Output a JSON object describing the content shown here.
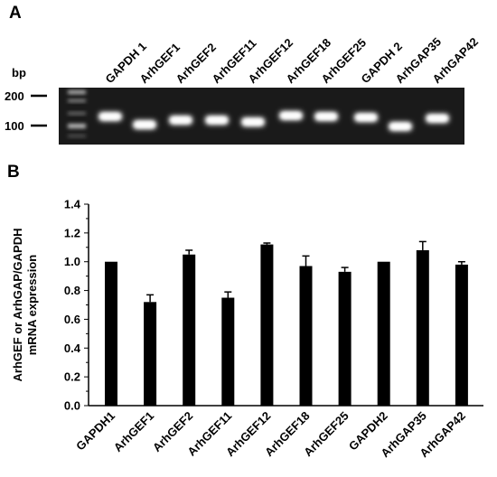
{
  "panel_a": {
    "letter": "A",
    "unit_label": "bp",
    "markers": [
      "200",
      "100"
    ],
    "lanes": [
      "GAPDH 1",
      "ArhGEF1",
      "ArhGEF2",
      "ArhGEF11",
      "ArhGEF12",
      "ArhGEF18",
      "ArhGEF25",
      "GAPDH 2",
      "ArhGAP35",
      "ArhGAP42"
    ]
  },
  "panel_b": {
    "letter": "B"
  },
  "chart_data": {
    "type": "bar",
    "categories": [
      "GAPDH1",
      "ArhGEF1",
      "ArhGEF2",
      "ArhGEF11",
      "ArhGEF12",
      "ArhGEF18",
      "ArhGEF25",
      "GAPDH2",
      "ArhGAP35",
      "ArhGAP42"
    ],
    "values": [
      1.0,
      0.72,
      1.05,
      0.75,
      1.12,
      0.97,
      0.93,
      1.0,
      1.08,
      0.98
    ],
    "errors": [
      0.0,
      0.05,
      0.03,
      0.04,
      0.01,
      0.07,
      0.03,
      0.0,
      0.06,
      0.02
    ],
    "title": "",
    "xlabel": "",
    "ylabel_lines": [
      "ArhGEF or ArhGAP/GAPDH",
      "mRNA expression"
    ],
    "ylim": [
      0,
      1.4
    ],
    "yticks": [
      "0.0",
      "0.2",
      "0.4",
      "0.6",
      "0.8",
      "1.0",
      "1.2",
      "1.4"
    ],
    "bar_color": "#000000",
    "grid": false
  }
}
